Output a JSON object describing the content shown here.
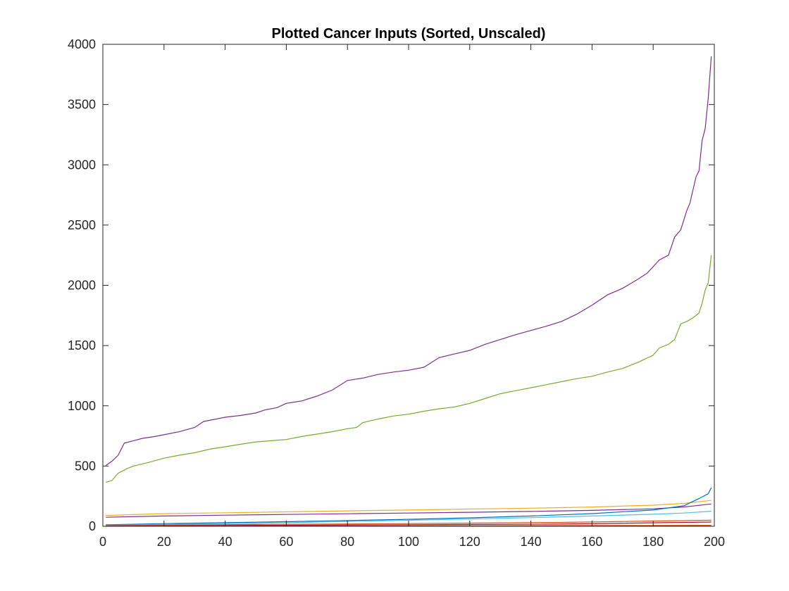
{
  "chart_data": {
    "type": "line",
    "title": "Plotted Cancer Inputs (Sorted, Unscaled)",
    "xlabel": "",
    "ylabel": "",
    "xlim": [
      0,
      200
    ],
    "ylim": [
      0,
      4000
    ],
    "xticks": [
      0,
      20,
      40,
      60,
      80,
      100,
      120,
      140,
      160,
      180,
      200
    ],
    "yticks": [
      0,
      500,
      1000,
      1500,
      2000,
      2500,
      3000,
      3500,
      4000
    ],
    "grid": false,
    "legend": "none",
    "series": [
      {
        "color": "#7E2F8E",
        "points": [
          [
            1,
            505
          ],
          [
            3,
            540
          ],
          [
            5,
            590
          ],
          [
            7,
            690
          ],
          [
            10,
            710
          ],
          [
            13,
            730
          ],
          [
            17,
            745
          ],
          [
            20,
            760
          ],
          [
            25,
            785
          ],
          [
            30,
            820
          ],
          [
            33,
            870
          ],
          [
            37,
            890
          ],
          [
            40,
            905
          ],
          [
            45,
            920
          ],
          [
            50,
            940
          ],
          [
            53,
            965
          ],
          [
            57,
            985
          ],
          [
            60,
            1020
          ],
          [
            65,
            1040
          ],
          [
            70,
            1080
          ],
          [
            75,
            1130
          ],
          [
            80,
            1210
          ],
          [
            85,
            1230
          ],
          [
            90,
            1260
          ],
          [
            95,
            1280
          ],
          [
            100,
            1295
          ],
          [
            105,
            1320
          ],
          [
            110,
            1400
          ],
          [
            115,
            1430
          ],
          [
            120,
            1460
          ],
          [
            125,
            1510
          ],
          [
            130,
            1550
          ],
          [
            135,
            1590
          ],
          [
            140,
            1625
          ],
          [
            145,
            1660
          ],
          [
            150,
            1700
          ],
          [
            155,
            1760
          ],
          [
            160,
            1835
          ],
          [
            165,
            1920
          ],
          [
            170,
            1975
          ],
          [
            175,
            2050
          ],
          [
            178,
            2100
          ],
          [
            182,
            2210
          ],
          [
            185,
            2250
          ],
          [
            187,
            2400
          ],
          [
            189,
            2460
          ],
          [
            191,
            2620
          ],
          [
            192,
            2680
          ],
          [
            194,
            2900
          ],
          [
            195,
            2950
          ],
          [
            196,
            3200
          ],
          [
            197,
            3300
          ],
          [
            198,
            3550
          ],
          [
            199,
            3900
          ]
        ]
      },
      {
        "color": "#77AC30",
        "points": [
          [
            1,
            365
          ],
          [
            3,
            380
          ],
          [
            5,
            440
          ],
          [
            8,
            480
          ],
          [
            10,
            500
          ],
          [
            15,
            530
          ],
          [
            20,
            565
          ],
          [
            25,
            590
          ],
          [
            30,
            610
          ],
          [
            35,
            640
          ],
          [
            40,
            660
          ],
          [
            45,
            680
          ],
          [
            50,
            700
          ],
          [
            55,
            710
          ],
          [
            60,
            720
          ],
          [
            65,
            745
          ],
          [
            70,
            765
          ],
          [
            75,
            785
          ],
          [
            80,
            810
          ],
          [
            83,
            820
          ],
          [
            85,
            860
          ],
          [
            90,
            890
          ],
          [
            95,
            915
          ],
          [
            100,
            930
          ],
          [
            105,
            955
          ],
          [
            110,
            975
          ],
          [
            115,
            990
          ],
          [
            120,
            1020
          ],
          [
            125,
            1060
          ],
          [
            130,
            1100
          ],
          [
            135,
            1125
          ],
          [
            140,
            1150
          ],
          [
            145,
            1175
          ],
          [
            150,
            1200
          ],
          [
            155,
            1225
          ],
          [
            160,
            1245
          ],
          [
            165,
            1280
          ],
          [
            170,
            1310
          ],
          [
            175,
            1360
          ],
          [
            180,
            1420
          ],
          [
            182,
            1480
          ],
          [
            185,
            1510
          ],
          [
            187,
            1550
          ],
          [
            189,
            1680
          ],
          [
            191,
            1700
          ],
          [
            193,
            1730
          ],
          [
            195,
            1770
          ],
          [
            196,
            1850
          ],
          [
            197,
            1960
          ],
          [
            198,
            2020
          ],
          [
            199,
            2250
          ]
        ]
      },
      {
        "color": "#EDB120",
        "points": [
          [
            1,
            90
          ],
          [
            20,
            105
          ],
          [
            40,
            112
          ],
          [
            60,
            120
          ],
          [
            80,
            128
          ],
          [
            100,
            135
          ],
          [
            120,
            143
          ],
          [
            140,
            150
          ],
          [
            160,
            160
          ],
          [
            180,
            175
          ],
          [
            190,
            190
          ],
          [
            199,
            215
          ]
        ]
      },
      {
        "color": "#7E2F8E",
        "points": [
          [
            1,
            75
          ],
          [
            20,
            85
          ],
          [
            40,
            92
          ],
          [
            60,
            98
          ],
          [
            80,
            104
          ],
          [
            100,
            110
          ],
          [
            120,
            116
          ],
          [
            140,
            123
          ],
          [
            160,
            132
          ],
          [
            180,
            145
          ],
          [
            190,
            160
          ],
          [
            199,
            185
          ]
        ]
      },
      {
        "color": "#0072BD",
        "points": [
          [
            1,
            12
          ],
          [
            20,
            22
          ],
          [
            40,
            30
          ],
          [
            60,
            38
          ],
          [
            80,
            48
          ],
          [
            100,
            58
          ],
          [
            120,
            70
          ],
          [
            140,
            85
          ],
          [
            160,
            105
          ],
          [
            180,
            135
          ],
          [
            190,
            170
          ],
          [
            195,
            230
          ],
          [
            198,
            270
          ],
          [
            199,
            320
          ]
        ]
      },
      {
        "color": "#4DBEEE",
        "points": [
          [
            1,
            8
          ],
          [
            20,
            15
          ],
          [
            40,
            22
          ],
          [
            60,
            30
          ],
          [
            80,
            40
          ],
          [
            100,
            50
          ],
          [
            120,
            60
          ],
          [
            140,
            72
          ],
          [
            160,
            85
          ],
          [
            180,
            100
          ],
          [
            190,
            110
          ],
          [
            199,
            125
          ]
        ]
      },
      {
        "color": "#D95319",
        "points": [
          [
            1,
            5
          ],
          [
            50,
            15
          ],
          [
            100,
            22
          ],
          [
            150,
            32
          ],
          [
            199,
            50
          ]
        ]
      },
      {
        "color": "#A2142F",
        "points": [
          [
            1,
            3
          ],
          [
            50,
            8
          ],
          [
            100,
            12
          ],
          [
            150,
            18
          ],
          [
            199,
            35
          ]
        ]
      },
      {
        "color": "#D95319",
        "points": [
          [
            1,
            1
          ],
          [
            100,
            3
          ],
          [
            199,
            8
          ]
        ]
      },
      {
        "color": "#0072BD",
        "points": [
          [
            1,
            0.5
          ],
          [
            100,
            1
          ],
          [
            199,
            2
          ]
        ]
      }
    ]
  }
}
